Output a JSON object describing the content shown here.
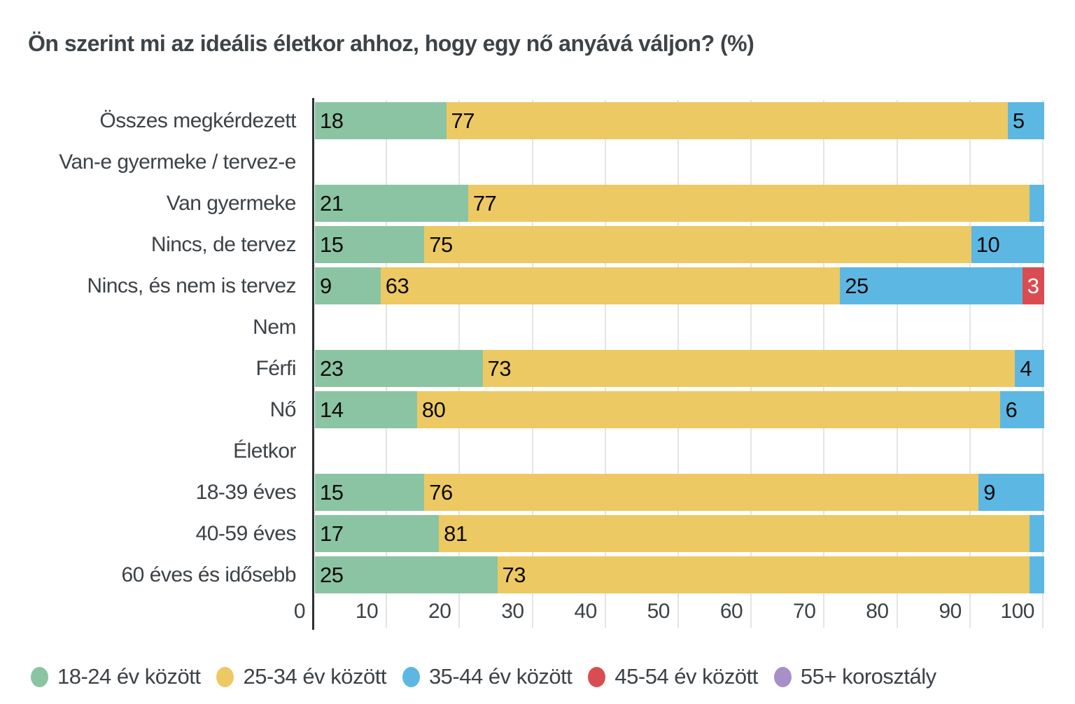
{
  "chart_data": {
    "type": "bar",
    "orientation": "horizontal",
    "stacked": true,
    "title": "Ön szerint mi az ideális életkor ahhoz, hogy egy nő anyává váljon? (%)",
    "xlabel": "",
    "ylabel": "",
    "xlim": [
      0,
      100
    ],
    "xticks": [
      "0",
      "10",
      "20",
      "30",
      "40",
      "50",
      "60",
      "70",
      "80",
      "90",
      "100"
    ],
    "grid": "vertical",
    "legend_position": "bottom",
    "series": [
      {
        "name": "18-24 év között",
        "color": "#8bc4a2",
        "text_color": "#0a0a0a"
      },
      {
        "name": "25-34 év között",
        "color": "#edc963",
        "text_color": "#0a0a0a"
      },
      {
        "name": "35-44 év között",
        "color": "#5cb8e3",
        "text_color": "#0a0a0a"
      },
      {
        "name": "45-54 év között",
        "color": "#d94d52",
        "text_color": "#ffffff"
      },
      {
        "name": "55+ korosztály",
        "color": "#a78fc9",
        "text_color": "#0a0a0a"
      }
    ],
    "rows": [
      {
        "label": "Összes megkérdezett",
        "header": false,
        "segments": [
          {
            "series": 0,
            "value": 18,
            "label": "18"
          },
          {
            "series": 1,
            "value": 77,
            "label": "77"
          },
          {
            "series": 2,
            "value": 5,
            "label": "5"
          }
        ]
      },
      {
        "label": "Van-e gyermeke / tervez-e",
        "header": true,
        "segments": []
      },
      {
        "label": "Van gyermeke",
        "header": false,
        "segments": [
          {
            "series": 0,
            "value": 21,
            "label": "21"
          },
          {
            "series": 1,
            "value": 77,
            "label": "77"
          },
          {
            "series": 2,
            "value": 2,
            "label": ""
          }
        ]
      },
      {
        "label": "Nincs, de tervez",
        "header": false,
        "segments": [
          {
            "series": 0,
            "value": 15,
            "label": "15"
          },
          {
            "series": 1,
            "value": 75,
            "label": "75"
          },
          {
            "series": 2,
            "value": 10,
            "label": "10"
          }
        ]
      },
      {
        "label": "Nincs, és nem is tervez",
        "header": false,
        "segments": [
          {
            "series": 0,
            "value": 9,
            "label": "9"
          },
          {
            "series": 1,
            "value": 63,
            "label": "63"
          },
          {
            "series": 2,
            "value": 25,
            "label": "25"
          },
          {
            "series": 3,
            "value": 3,
            "label": "3"
          }
        ]
      },
      {
        "label": "Nem",
        "header": true,
        "segments": []
      },
      {
        "label": "Férfi",
        "header": false,
        "segments": [
          {
            "series": 0,
            "value": 23,
            "label": "23"
          },
          {
            "series": 1,
            "value": 73,
            "label": "73"
          },
          {
            "series": 2,
            "value": 4,
            "label": "4"
          }
        ]
      },
      {
        "label": "Nő",
        "header": false,
        "segments": [
          {
            "series": 0,
            "value": 14,
            "label": "14"
          },
          {
            "series": 1,
            "value": 80,
            "label": "80"
          },
          {
            "series": 2,
            "value": 6,
            "label": "6"
          }
        ]
      },
      {
        "label": "Életkor",
        "header": true,
        "segments": []
      },
      {
        "label": "18-39 éves",
        "header": false,
        "segments": [
          {
            "series": 0,
            "value": 15,
            "label": "15"
          },
          {
            "series": 1,
            "value": 76,
            "label": "76"
          },
          {
            "series": 2,
            "value": 9,
            "label": "9"
          }
        ]
      },
      {
        "label": "40-59 éves",
        "header": false,
        "segments": [
          {
            "series": 0,
            "value": 17,
            "label": "17"
          },
          {
            "series": 1,
            "value": 81,
            "label": "81"
          },
          {
            "series": 2,
            "value": 2,
            "label": ""
          }
        ]
      },
      {
        "label": "60 éves és idősebb",
        "header": false,
        "segments": [
          {
            "series": 0,
            "value": 25,
            "label": "25"
          },
          {
            "series": 1,
            "value": 73,
            "label": "73"
          },
          {
            "series": 2,
            "value": 2,
            "label": ""
          }
        ]
      }
    ]
  }
}
